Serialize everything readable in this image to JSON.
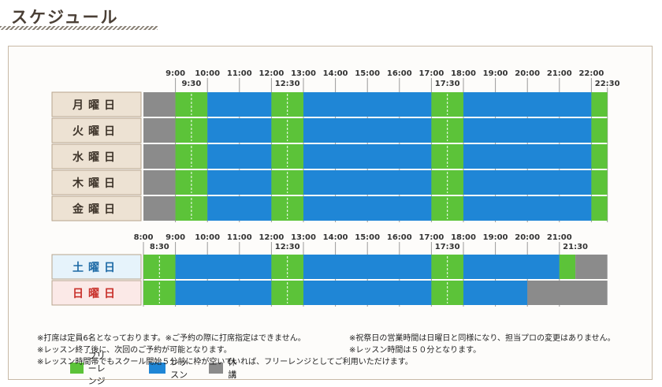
{
  "page": {
    "title": "スケジュール"
  },
  "colors": {
    "free": "#5cc339",
    "lesson": "#1f86d6",
    "closed": "#8b8b8b",
    "weekday_label_bg": "#ede2d3",
    "sat_label_bg": "#e6f3fb",
    "sun_label_bg": "#fbe9e7",
    "weekday_text": "#3e342a",
    "sat_text": "#1d6aa6",
    "sun_text": "#c8302a"
  },
  "weekday_times": {
    "top": [
      "9:00",
      "10:00",
      "11:00",
      "12:00",
      "13:00",
      "14:00",
      "15:00",
      "16:00",
      "17:00",
      "18:00",
      "19:00",
      "20:00",
      "21:00",
      "22:00"
    ],
    "bottom": [
      "9:30",
      "12:30",
      "17:30",
      "22:30"
    ]
  },
  "weekend_times": {
    "top": [
      "8:00",
      "9:00",
      "10:00",
      "11:00",
      "12:00",
      "13:00",
      "14:00",
      "15:00",
      "16:00",
      "17:00",
      "18:00",
      "19:00",
      "20:00",
      "21:00"
    ],
    "bottom": [
      "8:30",
      "12:30",
      "17:30",
      "21:30"
    ]
  },
  "weekdays": {
    "days": [
      "月曜日",
      "火曜日",
      "水曜日",
      "木曜日",
      "金曜日"
    ],
    "segments": [
      {
        "type": "closed",
        "start": "8:00",
        "end": "9:00"
      },
      {
        "type": "free",
        "start": "9:00",
        "end": "10:00"
      },
      {
        "type": "lesson",
        "start": "10:00",
        "end": "12:00"
      },
      {
        "type": "free",
        "start": "12:00",
        "end": "13:00"
      },
      {
        "type": "lesson",
        "start": "13:00",
        "end": "17:00"
      },
      {
        "type": "free",
        "start": "17:00",
        "end": "18:00"
      },
      {
        "type": "lesson",
        "start": "18:00",
        "end": "22:00"
      },
      {
        "type": "free",
        "start": "22:00",
        "end": "22:30"
      }
    ],
    "half_marks": [
      "9:30",
      "12:30",
      "17:30"
    ]
  },
  "weekend": [
    {
      "day": "土曜日",
      "kind": "sat",
      "segments": [
        {
          "type": "free",
          "start": "8:00",
          "end": "9:00"
        },
        {
          "type": "lesson",
          "start": "9:00",
          "end": "12:00"
        },
        {
          "type": "free",
          "start": "12:00",
          "end": "13:00"
        },
        {
          "type": "lesson",
          "start": "13:00",
          "end": "17:00"
        },
        {
          "type": "free",
          "start": "17:00",
          "end": "18:00"
        },
        {
          "type": "lesson",
          "start": "18:00",
          "end": "21:00"
        },
        {
          "type": "free",
          "start": "21:00",
          "end": "21:30"
        },
        {
          "type": "closed",
          "start": "21:30",
          "end": "22:30"
        }
      ],
      "half_marks": [
        "8:30",
        "12:30",
        "17:30"
      ]
    },
    {
      "day": "日曜日",
      "kind": "sun",
      "segments": [
        {
          "type": "free",
          "start": "8:00",
          "end": "9:00"
        },
        {
          "type": "lesson",
          "start": "9:00",
          "end": "12:00"
        },
        {
          "type": "free",
          "start": "12:00",
          "end": "13:00"
        },
        {
          "type": "lesson",
          "start": "13:00",
          "end": "17:00"
        },
        {
          "type": "free",
          "start": "17:00",
          "end": "18:00"
        },
        {
          "type": "lesson",
          "start": "18:00",
          "end": "20:00"
        },
        {
          "type": "closed",
          "start": "20:00",
          "end": "22:30"
        }
      ],
      "half_marks": [
        "8:30",
        "12:30",
        "17:30"
      ]
    }
  ],
  "legend": [
    {
      "type": "free",
      "label": "フリーレンジ"
    },
    {
      "type": "lesson",
      "label": "レッスン"
    },
    {
      "type": "closed",
      "label": "休講"
    }
  ],
  "notes": {
    "left": [
      "※打席は定員6名となっております。※ご予約の際に打席指定はできません。",
      "※レッスン終了後に、次回のご予約が可能となります。",
      "※レッスン時間帯でもスクール開始５分前に枠が空いていれば、フリーレンジとしてご利用いただけます。"
    ],
    "right": [
      "※祝祭日の営業時間は日曜日と同様になり、担当プロの変更はありません。",
      "※レッスン時間は５０分となります。"
    ]
  }
}
